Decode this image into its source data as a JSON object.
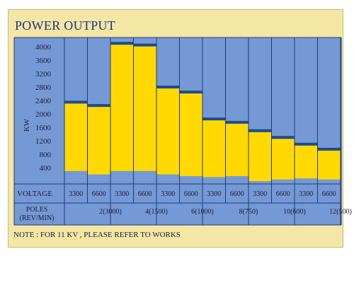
{
  "title": "POWER OUTPUT",
  "note": "NOTE : FOR 11 KV , PLEASE REFER TO WORKS",
  "colors": {
    "background_panel": "#f4e7a6",
    "plot_blue": "#7599d4",
    "bar_yellow": "#ffd900",
    "bar_top": "#1d4c8c",
    "gridline": "#1f3a7a",
    "text_dark": "#1b1b3a",
    "title": "#1f2f86"
  },
  "chart_data": {
    "type": "bar",
    "style": "floating range bars (min to max output) on a blue background",
    "ylabel": "KW",
    "ylim": [
      0,
      4600
    ],
    "yticks": [
      400,
      800,
      1200,
      1600,
      2000,
      2400,
      2800,
      3200,
      3600,
      4000
    ],
    "grid": true,
    "voltage_row_label": "VOLTAGE",
    "poles_row_label": "POLES\n(REV/MIN)",
    "categories": [
      "3300",
      "6600",
      "3300",
      "6600",
      "3300",
      "6600",
      "3300",
      "6600",
      "3300",
      "6600",
      "3300",
      "6600"
    ],
    "pole_groups": [
      "2(3000)",
      "4(1500)",
      "6(1000)",
      "8(750)",
      "10(600)",
      "12(500)"
    ],
    "series": [
      {
        "values_min": [
          300,
          200,
          300,
          300,
          200,
          150,
          120,
          150,
          0,
          50,
          80,
          50
        ],
        "values_max": [
          2350,
          2250,
          4100,
          4050,
          2800,
          2650,
          1850,
          1750,
          1500,
          1300,
          1100,
          950
        ]
      }
    ]
  }
}
